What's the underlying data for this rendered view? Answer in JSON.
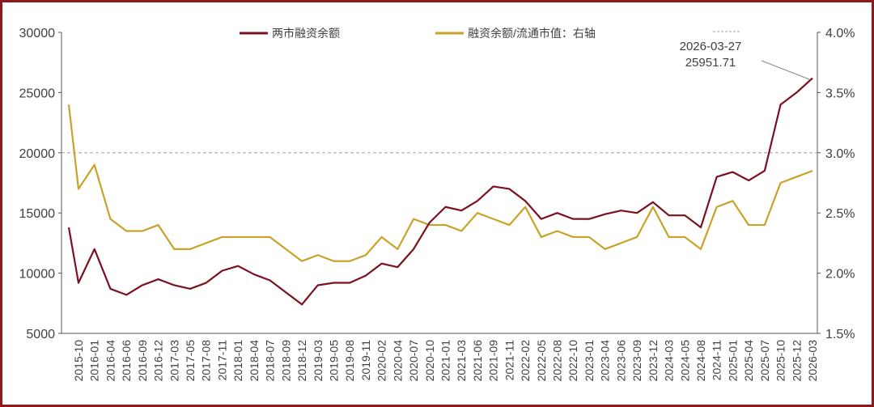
{
  "chart_data": {
    "type": "line",
    "title": "",
    "categories": [
      "2015-10",
      "2016-01",
      "2016-04",
      "2016-06",
      "2016-09",
      "2016-12",
      "2017-03",
      "2017-05",
      "2017-08",
      "2017-11",
      "2018-01",
      "2018-04",
      "2018-07",
      "2018-09",
      "2018-12",
      "2019-03",
      "2019-05",
      "2019-08",
      "2019-11",
      "2020-02",
      "2020-04",
      "2020-07",
      "2020-10",
      "2021-01",
      "2021-03",
      "2021-06",
      "2021-09",
      "2021-11",
      "2022-02",
      "2022-05",
      "2022-08",
      "2022-10",
      "2023-01",
      "2023-04",
      "2023-06",
      "2023-09",
      "2023-12",
      "2024-03",
      "2024-05",
      "2024-08",
      "2024-11",
      "2025-01",
      "2025-04",
      "2025-07",
      "2025-10",
      "2025-12",
      "2026-03"
    ],
    "y_left": {
      "ticks": [
        "30000",
        "25000",
        "20000",
        "15000",
        "10000",
        "5000"
      ],
      "range": [
        5000,
        30000
      ]
    },
    "y_right": {
      "ticks": [
        "4.0%",
        "3.5%",
        "3.0%",
        "2.5%",
        "2.0%",
        "1.5%"
      ],
      "range": [
        1.5,
        4.0
      ]
    },
    "series": [
      {
        "name": "两市融资余额",
        "axis": "left",
        "color": "#7a1020",
        "start_value": 13800,
        "values": [
          9200,
          12000,
          8700,
          8200,
          9000,
          9500,
          9000,
          8700,
          9200,
          10200,
          10600,
          9900,
          9400,
          8400,
          7400,
          9000,
          9200,
          9200,
          9800,
          10800,
          10500,
          12000,
          14200,
          15500,
          15200,
          16000,
          17200,
          17000,
          16000,
          14500,
          15000,
          14500,
          14500,
          14900,
          15200,
          15000,
          15900,
          14800,
          14800,
          13800,
          18000,
          18400,
          17700,
          18500,
          24000,
          25000,
          26200
        ]
      },
      {
        "name": "融资余额/流通市值：右轴",
        "axis": "right",
        "color": "#c9a227",
        "start_value": 3.4,
        "values": [
          2.7,
          2.9,
          2.45,
          2.35,
          2.35,
          2.4,
          2.2,
          2.2,
          2.25,
          2.3,
          2.3,
          2.3,
          2.3,
          2.2,
          2.1,
          2.15,
          2.1,
          2.1,
          2.15,
          2.3,
          2.2,
          2.45,
          2.4,
          2.4,
          2.35,
          2.5,
          2.45,
          2.4,
          2.55,
          2.3,
          2.35,
          2.3,
          2.3,
          2.2,
          2.25,
          2.3,
          2.55,
          2.3,
          2.3,
          2.2,
          2.55,
          2.6,
          2.4,
          2.4,
          2.75,
          2.8,
          2.85
        ]
      }
    ],
    "reference_line": {
      "axis": "right",
      "value": 3.0,
      "style": "dashed",
      "color": "#a0a0a0"
    },
    "annotation": {
      "date": "2026-03-27",
      "value": "25951.71"
    },
    "legend": {
      "placement": "top",
      "items": [
        "两市融资余额",
        "融资余额/流通市值：右轴"
      ]
    },
    "grid": false
  }
}
